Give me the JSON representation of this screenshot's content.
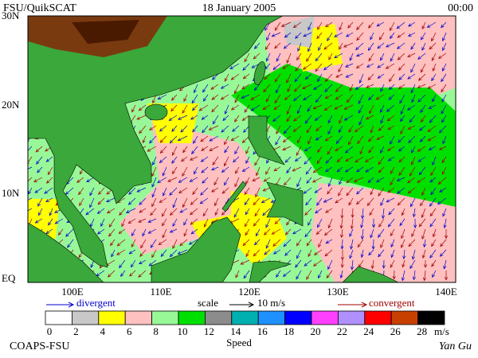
{
  "header": {
    "left": "FSU/QuikSCAT",
    "date": "18 January 2005",
    "time": "00:00"
  },
  "map": {
    "lat_labels": [
      "30N",
      "20N",
      "10N",
      "EQ"
    ],
    "lon_labels": [
      "100E",
      "110E",
      "120E",
      "130E",
      "140E"
    ]
  },
  "legend": {
    "divergent": "divergent",
    "scale": "scale",
    "scale_value": "10 m/s",
    "convergent": "convergent"
  },
  "colorbar": {
    "labels": [
      0,
      2,
      4,
      6,
      8,
      10,
      12,
      14,
      16,
      18,
      20,
      22,
      24,
      26,
      28
    ],
    "unit": "m/s",
    "title": "Speed",
    "colors": [
      "#ffffff",
      "#c8c8c8",
      "#ffff00",
      "#ffc0c0",
      "#98f898",
      "#00e000",
      "#8c8c8c",
      "#00b0b0",
      "#1e90ff",
      "#0000ff",
      "#ff40ff",
      "#b090ff",
      "#ff0000",
      "#c84000",
      "#000000"
    ]
  },
  "footer": {
    "left": "COAPS-FSU",
    "right": "Yan Gu"
  }
}
